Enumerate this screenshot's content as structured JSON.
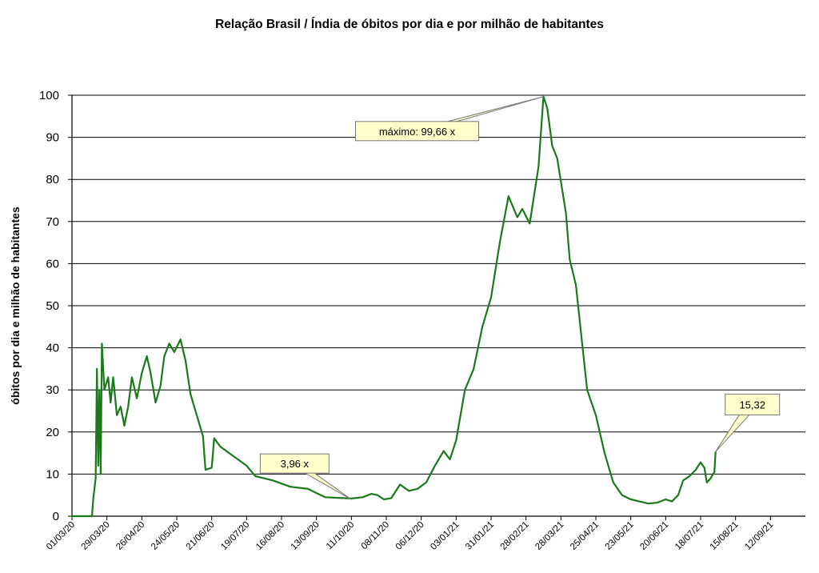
{
  "chart_data": {
    "type": "line",
    "title": "Relação Brasil / Índia de óbitos por dia e por milhão de habitantes",
    "xlabel": "",
    "ylabel": "óbitos por dia e milhão de habitantes",
    "ylim": [
      0,
      100
    ],
    "yticks": [
      "0",
      "10",
      "20",
      "30",
      "40",
      "50",
      "60",
      "70",
      "80",
      "90",
      "100"
    ],
    "xlim": [
      "2020-03-01",
      "2021-10-10"
    ],
    "xtick_labels": [
      "01/03/20",
      "29/03/20",
      "26/04/20",
      "24/05/20",
      "21/06/20",
      "19/07/20",
      "16/08/20",
      "13/09/20",
      "11/10/20",
      "08/11/20",
      "06/12/20",
      "03/01/21",
      "31/01/21",
      "28/02/21",
      "28/03/21",
      "25/04/21",
      "23/05/21",
      "20/06/21",
      "18/07/21",
      "15/08/21",
      "12/09/21"
    ],
    "grid": true,
    "line_color": "#1a7a1a",
    "series": [
      {
        "points": [
          [
            "2020-03-01",
            0
          ],
          [
            "2020-03-17",
            0
          ],
          [
            "2020-03-18",
            4
          ],
          [
            "2020-03-20",
            9
          ],
          [
            "2020-03-21",
            35
          ],
          [
            "2020-03-22",
            12
          ],
          [
            "2020-03-23",
            30
          ],
          [
            "2020-03-24",
            10
          ],
          [
            "2020-03-25",
            41
          ],
          [
            "2020-03-27",
            30
          ],
          [
            "2020-03-30",
            33
          ],
          [
            "2020-04-01",
            27
          ],
          [
            "2020-04-03",
            33
          ],
          [
            "2020-04-06",
            24
          ],
          [
            "2020-04-09",
            26
          ],
          [
            "2020-04-12",
            21.5
          ],
          [
            "2020-04-15",
            26
          ],
          [
            "2020-04-18",
            33
          ],
          [
            "2020-04-22",
            28
          ],
          [
            "2020-04-26",
            34
          ],
          [
            "2020-04-30",
            38
          ],
          [
            "2020-05-03",
            34
          ],
          [
            "2020-05-07",
            27
          ],
          [
            "2020-05-11",
            31
          ],
          [
            "2020-05-14",
            38
          ],
          [
            "2020-05-18",
            41
          ],
          [
            "2020-05-22",
            39
          ],
          [
            "2020-05-27",
            42
          ],
          [
            "2020-05-31",
            37
          ],
          [
            "2020-06-04",
            29
          ],
          [
            "2020-06-09",
            24
          ],
          [
            "2020-06-14",
            19
          ],
          [
            "2020-06-16",
            11
          ],
          [
            "2020-06-21",
            11.5
          ],
          [
            "2020-06-23",
            18.5
          ],
          [
            "2020-06-28",
            16.5
          ],
          [
            "2020-07-05",
            15
          ],
          [
            "2020-07-12",
            13.5
          ],
          [
            "2020-07-19",
            12
          ],
          [
            "2020-07-26",
            9.5
          ],
          [
            "2020-08-09",
            8.5
          ],
          [
            "2020-08-23",
            7
          ],
          [
            "2020-09-06",
            6.5
          ],
          [
            "2020-09-13",
            5.5
          ],
          [
            "2020-09-20",
            4.5
          ],
          [
            "2020-10-04",
            4.3
          ],
          [
            "2020-10-11",
            4.2
          ],
          [
            "2020-10-20",
            4.5
          ],
          [
            "2020-10-27",
            5.3
          ],
          [
            "2020-11-01",
            5
          ],
          [
            "2020-11-06",
            4
          ],
          [
            "2020-11-12",
            4.3
          ],
          [
            "2020-11-19",
            7.5
          ],
          [
            "2020-11-26",
            6
          ],
          [
            "2020-12-03",
            6.5
          ],
          [
            "2020-12-10",
            8
          ],
          [
            "2020-12-17",
            12
          ],
          [
            "2020-12-24",
            15.5
          ],
          [
            "2020-12-29",
            13.5
          ],
          [
            "2021-01-03",
            18
          ],
          [
            "2021-01-10",
            30
          ],
          [
            "2021-01-17",
            35
          ],
          [
            "2021-01-24",
            45
          ],
          [
            "2021-01-31",
            52
          ],
          [
            "2021-02-07",
            65
          ],
          [
            "2021-02-14",
            76
          ],
          [
            "2021-02-21",
            71
          ],
          [
            "2021-02-25",
            73
          ],
          [
            "2021-03-03",
            69.5
          ],
          [
            "2021-03-10",
            83
          ],
          [
            "2021-03-14",
            99.66
          ],
          [
            "2021-03-17",
            97
          ],
          [
            "2021-03-21",
            88
          ],
          [
            "2021-03-25",
            85
          ],
          [
            "2021-04-01",
            72
          ],
          [
            "2021-04-04",
            61
          ],
          [
            "2021-04-09",
            55
          ],
          [
            "2021-04-18",
            30
          ],
          [
            "2021-04-25",
            24
          ],
          [
            "2021-05-02",
            15
          ],
          [
            "2021-05-09",
            8
          ],
          [
            "2021-05-16",
            5
          ],
          [
            "2021-05-23",
            4
          ],
          [
            "2021-05-30",
            3.5
          ],
          [
            "2021-06-06",
            3
          ],
          [
            "2021-06-13",
            3.2
          ],
          [
            "2021-06-20",
            4
          ],
          [
            "2021-06-25",
            3.5
          ],
          [
            "2021-06-30",
            5
          ],
          [
            "2021-07-04",
            8.5
          ],
          [
            "2021-07-09",
            9.5
          ],
          [
            "2021-07-14",
            11
          ],
          [
            "2021-07-18",
            12.8
          ],
          [
            "2021-07-21",
            11.5
          ],
          [
            "2021-07-23",
            8
          ],
          [
            "2021-07-26",
            9
          ],
          [
            "2021-07-29",
            10.5
          ],
          [
            "2021-07-30",
            15.32
          ]
        ]
      }
    ],
    "annotations": [
      {
        "text": "máximo: 99,66 x",
        "x": "2021-03-14",
        "y": 99.66
      },
      {
        "text": "3,96 x",
        "x": "2020-10-11",
        "y": 3.96
      },
      {
        "text": "15,32",
        "x": "2021-07-30",
        "y": 15.32
      }
    ]
  }
}
